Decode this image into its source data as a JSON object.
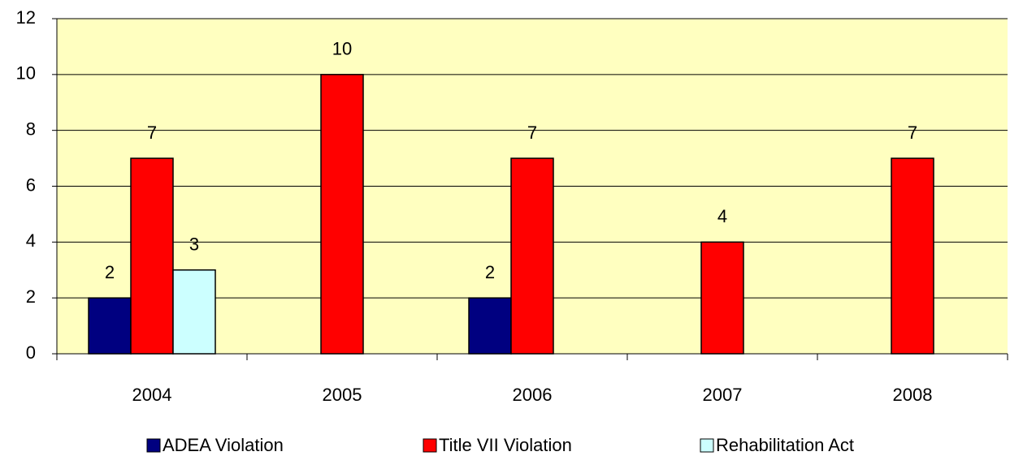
{
  "chart_data": {
    "type": "bar",
    "categories": [
      "2004",
      "2005",
      "2006",
      "2007",
      "2008"
    ],
    "series": [
      {
        "name": "ADEA Violation",
        "color": "#000080",
        "values": [
          2,
          null,
          2,
          null,
          null
        ]
      },
      {
        "name": "Title VII Violation",
        "color": "#ff0000",
        "values": [
          7,
          10,
          7,
          4,
          7
        ]
      },
      {
        "name": "Rehabilitation Act",
        "color": "#ccffff",
        "values": [
          3,
          null,
          null,
          null,
          null
        ]
      }
    ],
    "ylim": [
      0,
      12
    ],
    "yticks": [
      0,
      2,
      4,
      6,
      8,
      10,
      12
    ],
    "grid": true,
    "legend": "bottom",
    "plot_background": "#ffffc0"
  }
}
